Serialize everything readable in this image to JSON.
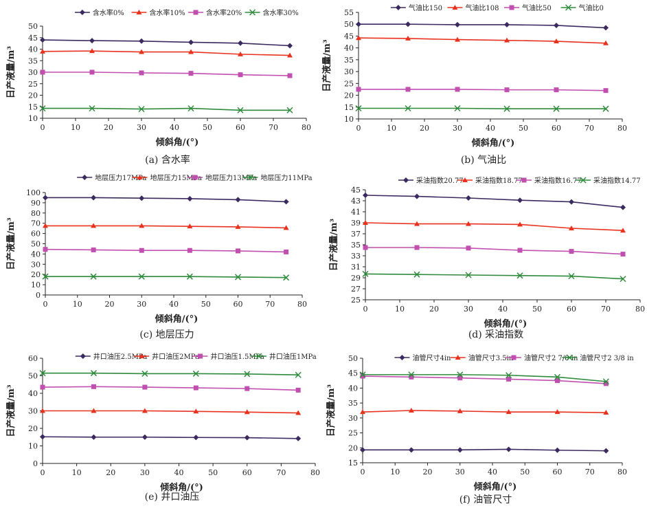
{
  "chart_data": [
    {
      "type": "line",
      "caption": "(a) 含水率",
      "xlabel": "倾斜角/(°)",
      "ylabel": "日产液量/m³",
      "xlim": [
        0,
        80
      ],
      "ylim": [
        10,
        50
      ],
      "xticks": [
        0,
        10,
        20,
        30,
        40,
        50,
        60,
        70,
        80
      ],
      "yticks": [
        10,
        15,
        20,
        25,
        30,
        35,
        40,
        45,
        50
      ],
      "grid": false,
      "legend": "top",
      "x": [
        0,
        15,
        30,
        45,
        60,
        75
      ],
      "series": [
        {
          "name": "含水率0%",
          "marker": "diamond",
          "color": "#3b2a60",
          "values": [
            44,
            43.7,
            43.5,
            43,
            42.6,
            41.5
          ]
        },
        {
          "name": "含水率10%",
          "marker": "triangle",
          "color": "#e8321e",
          "values": [
            39,
            39.2,
            38.8,
            38.8,
            37.8,
            37.3
          ]
        },
        {
          "name": "含水率20%",
          "marker": "square",
          "color": "#c14fb0",
          "values": [
            30,
            30,
            29.7,
            29.5,
            28.9,
            28.5
          ]
        },
        {
          "name": "含水率30%",
          "marker": "x",
          "color": "#2e8b3c",
          "values": [
            14.3,
            14.3,
            14,
            14.3,
            13.5,
            13.5
          ]
        }
      ]
    },
    {
      "type": "line",
      "caption": "(b) 气油比",
      "xlabel": "倾斜角/(°)",
      "ylabel": "日产液量/m³",
      "xlim": [
        0,
        80
      ],
      "ylim": [
        10,
        55
      ],
      "xticks": [
        0,
        10,
        20,
        30,
        40,
        50,
        60,
        70,
        80
      ],
      "yticks": [
        10,
        15,
        20,
        25,
        30,
        35,
        40,
        45,
        50,
        55
      ],
      "grid": false,
      "legend": "top",
      "x": [
        0,
        15,
        30,
        45,
        60,
        75
      ],
      "series": [
        {
          "name": "气油比150",
          "marker": "diamond",
          "color": "#3b2a60",
          "values": [
            50,
            50,
            49.8,
            49.8,
            49.5,
            48.5
          ]
        },
        {
          "name": "气油比108",
          "marker": "triangle",
          "color": "#e8321e",
          "values": [
            44.2,
            44,
            43.5,
            43.2,
            42.8,
            42
          ]
        },
        {
          "name": "气油比50",
          "marker": "square",
          "color": "#c14fb0",
          "values": [
            22.5,
            22.5,
            22.5,
            22.3,
            22.3,
            22
          ]
        },
        {
          "name": "气油比0",
          "marker": "x",
          "color": "#2e8b3c",
          "values": [
            14.5,
            14.5,
            14.5,
            14.3,
            14.3,
            14.3
          ]
        }
      ]
    },
    {
      "type": "line",
      "caption": "(c) 地层压力",
      "xlabel": "倾斜角/(°)",
      "ylabel": "日产液量/m³",
      "xlim": [
        0,
        80
      ],
      "ylim": [
        0,
        100
      ],
      "xticks": [
        0,
        10,
        20,
        30,
        40,
        50,
        60,
        70,
        80
      ],
      "yticks": [
        0,
        10,
        20,
        30,
        40,
        50,
        60,
        70,
        80,
        90,
        100
      ],
      "grid": false,
      "legend": "top",
      "x": [
        0,
        15,
        30,
        45,
        60,
        75
      ],
      "series": [
        {
          "name": "地层压力17MPa",
          "marker": "diamond",
          "color": "#3b2a60",
          "values": [
            95,
            95,
            94.5,
            94,
            93,
            91
          ]
        },
        {
          "name": "地层压力15MPa",
          "marker": "triangle",
          "color": "#e8321e",
          "values": [
            67.5,
            67.5,
            67.5,
            67,
            66.5,
            65.5
          ]
        },
        {
          "name": "地层压力13MPa",
          "marker": "square",
          "color": "#c14fb0",
          "values": [
            44.5,
            44,
            43.5,
            43.5,
            43,
            42
          ]
        },
        {
          "name": "地层压力11MPa",
          "marker": "x",
          "color": "#2e8b3c",
          "values": [
            18,
            18,
            18,
            18,
            17.5,
            17
          ]
        }
      ]
    },
    {
      "type": "line",
      "caption": "(d) 采油指数",
      "xlabel": "倾斜角/(°)",
      "ylabel": "日产液量/m³",
      "xlim": [
        0,
        80
      ],
      "ylim": [
        25,
        45
      ],
      "xticks": [
        0,
        10,
        20,
        30,
        40,
        50,
        60,
        70,
        80
      ],
      "yticks": [
        25,
        27,
        29,
        31,
        33,
        35,
        37,
        39,
        41,
        43,
        45
      ],
      "grid": false,
      "legend": "top",
      "x": [
        0,
        15,
        30,
        45,
        60,
        75
      ],
      "series": [
        {
          "name": "采油指数20.77",
          "marker": "diamond",
          "color": "#3b2a60",
          "values": [
            44,
            43.8,
            43.5,
            43.1,
            42.8,
            41.8
          ]
        },
        {
          "name": "采油指数18.77",
          "marker": "triangle",
          "color": "#e8321e",
          "values": [
            39,
            38.8,
            38.8,
            38.7,
            38,
            37.6
          ]
        },
        {
          "name": "采油指数16.77",
          "marker": "square",
          "color": "#c14fb0",
          "values": [
            34.5,
            34.5,
            34.4,
            34,
            33.8,
            33.3
          ]
        },
        {
          "name": "采油指数14.77",
          "marker": "x",
          "color": "#2e8b3c",
          "values": [
            29.7,
            29.6,
            29.5,
            29.4,
            29.3,
            28.8
          ]
        }
      ]
    },
    {
      "type": "line",
      "caption": "(e) 井口油压",
      "xlabel": "倾斜角/(°)",
      "ylabel": "日产液量/m³",
      "xlim": [
        0,
        80
      ],
      "ylim": [
        0,
        60
      ],
      "xticks": [
        0,
        10,
        20,
        30,
        40,
        50,
        60,
        70,
        80
      ],
      "yticks": [
        0,
        10,
        20,
        30,
        40,
        50,
        60
      ],
      "grid": false,
      "legend": "top",
      "x": [
        0,
        15,
        30,
        45,
        60,
        75
      ],
      "series": [
        {
          "name": "井口油压2.5MPa",
          "marker": "diamond",
          "color": "#3b2a60",
          "values": [
            15.2,
            15,
            15,
            14.8,
            14.7,
            14.2
          ]
        },
        {
          "name": "井口油压2MPa",
          "marker": "triangle",
          "color": "#e8321e",
          "values": [
            30,
            30,
            30,
            29.7,
            29.3,
            28.8
          ]
        },
        {
          "name": "井口油压1.5MPa",
          "marker": "square",
          "color": "#c14fb0",
          "values": [
            43.5,
            43.8,
            43.5,
            43.1,
            42.7,
            41.8
          ]
        },
        {
          "name": "井口油压1MPa",
          "marker": "x",
          "color": "#2e8b3c",
          "values": [
            51.5,
            51.5,
            51.2,
            51.2,
            51,
            50.5
          ]
        }
      ]
    },
    {
      "type": "line",
      "caption": "(f) 油管尺寸",
      "xlabel": "倾斜角/(°)",
      "ylabel": "日产液量/m³",
      "xlim": [
        0,
        80
      ],
      "ylim": [
        15,
        50
      ],
      "xticks": [
        0,
        10,
        20,
        30,
        40,
        50,
        60,
        70,
        80
      ],
      "yticks": [
        15,
        20,
        25,
        30,
        35,
        40,
        45,
        50
      ],
      "grid": false,
      "legend": "top",
      "x": [
        0,
        15,
        30,
        45,
        60,
        75
      ],
      "series": [
        {
          "name": "油管尺寸4in",
          "marker": "diamond",
          "color": "#3b2a60",
          "values": [
            19.3,
            19.3,
            19.3,
            19.5,
            19.2,
            19
          ]
        },
        {
          "name": "油管尺寸3.5in",
          "marker": "triangle",
          "color": "#e8321e",
          "values": [
            32,
            32.5,
            32.3,
            32,
            32,
            31.8
          ]
        },
        {
          "name": "油管尺寸2 7/8 in",
          "marker": "square",
          "color": "#c14fb0",
          "values": [
            44,
            43.7,
            43.4,
            43,
            42.5,
            41.5
          ]
        },
        {
          "name": "油管尺寸2 3/8 in",
          "marker": "x",
          "color": "#2e8b3c",
          "values": [
            44.5,
            44.5,
            44.5,
            44.3,
            43.7,
            42.2
          ]
        }
      ]
    }
  ]
}
